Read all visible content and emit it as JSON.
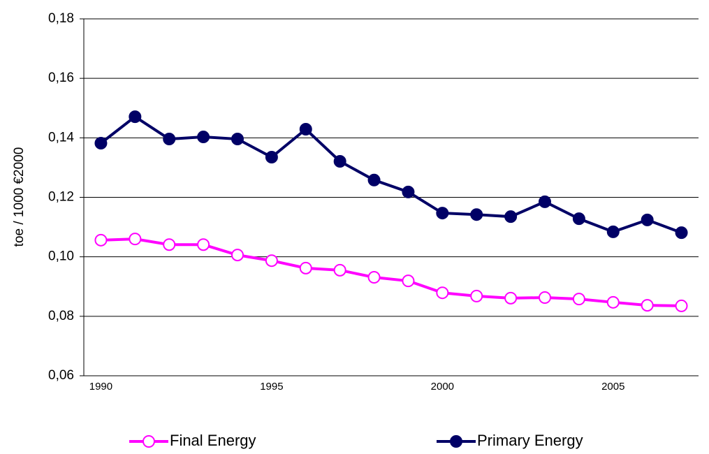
{
  "chart_data": {
    "type": "line",
    "ylabel": "toe / 1000 €2000",
    "x": [
      1990,
      1991,
      1992,
      1993,
      1994,
      1995,
      1996,
      1997,
      1998,
      1999,
      2000,
      2001,
      2002,
      2003,
      2004,
      2005,
      2006,
      2007
    ],
    "xlim": [
      1989.5,
      2007.5
    ],
    "xticks": [
      1990,
      1995,
      2000,
      2005
    ],
    "ylim": [
      0.06,
      0.18
    ],
    "yticks": [
      {
        "value": 0.06,
        "label": "0,06"
      },
      {
        "value": 0.08,
        "label": "0,08"
      },
      {
        "value": 0.1,
        "label": "0,10"
      },
      {
        "value": 0.12,
        "label": "0,12"
      },
      {
        "value": 0.14,
        "label": "0,14"
      },
      {
        "value": 0.16,
        "label": "0,16"
      },
      {
        "value": 0.18,
        "label": "0,18"
      }
    ],
    "grid": true,
    "legend": "bottom",
    "series": [
      {
        "name": "Final Energy",
        "color": "#ff00ff",
        "marker": "open",
        "values": [
          0.1056,
          0.106,
          0.1041,
          0.1041,
          0.1006,
          0.0987,
          0.0962,
          0.0955,
          0.0931,
          0.0919,
          0.0879,
          0.0868,
          0.0861,
          0.0863,
          0.0858,
          0.0847,
          0.0837,
          0.0835
        ]
      },
      {
        "name": "Primary Energy",
        "color": "#000066",
        "marker": "filled",
        "values": [
          0.1382,
          0.1471,
          0.1396,
          0.1403,
          0.1396,
          0.1335,
          0.1429,
          0.1321,
          0.1258,
          0.1218,
          0.1147,
          0.1142,
          0.1135,
          0.1185,
          0.1128,
          0.1084,
          0.1124,
          0.1081
        ]
      }
    ]
  }
}
